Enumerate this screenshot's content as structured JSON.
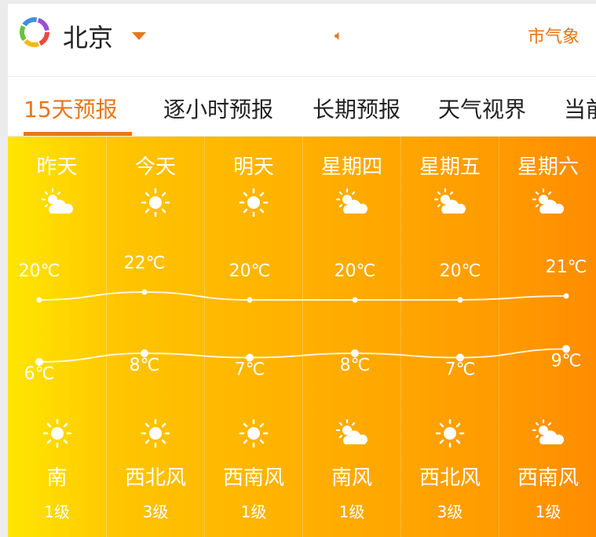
{
  "header": {
    "city": "北京",
    "agency": "市气象",
    "speaker_icon": "speaker-icon",
    "logo_colors": [
      "#e84c3d",
      "#f5b915",
      "#6cbf3f",
      "#3e8fe0",
      "#9b4fd1"
    ]
  },
  "nav": {
    "tabs": [
      {
        "label": "15天预报",
        "active": true
      },
      {
        "label": "逐小时预报"
      },
      {
        "label": "长期预报"
      },
      {
        "label": "天气视界"
      },
      {
        "label": "当前"
      }
    ]
  },
  "accent": "#e8761a",
  "days": [
    {
      "name": "昨天",
      "day_icon": "partly-cloudy",
      "night_icon": "sunny",
      "high": "20℃",
      "low": "6℃",
      "wind": "南",
      "level": "1级"
    },
    {
      "name": "今天",
      "day_icon": "sunny",
      "night_icon": "sunny",
      "high": "22℃",
      "low": "8℃",
      "wind": "西北风",
      "level": "3级"
    },
    {
      "name": "明天",
      "day_icon": "sunny",
      "night_icon": "sunny",
      "high": "20℃",
      "low": "7℃",
      "wind": "西南风",
      "level": "1级"
    },
    {
      "name": "星期四",
      "day_icon": "partly-cloudy",
      "night_icon": "partly-cloudy",
      "high": "20℃",
      "low": "8℃",
      "wind": "南风",
      "level": "1级"
    },
    {
      "name": "星期五",
      "day_icon": "partly-cloudy",
      "night_icon": "sunny",
      "high": "20℃",
      "low": "7℃",
      "wind": "西北风",
      "level": "3级"
    },
    {
      "name": "星期六",
      "day_icon": "partly-cloudy",
      "night_icon": "partly-cloudy",
      "high": "21℃",
      "low": "9℃",
      "wind": "西南风",
      "level": "1级"
    }
  ],
  "chart_data": {
    "type": "line",
    "categories": [
      "昨天",
      "今天",
      "明天",
      "星期四",
      "星期五",
      "星期六"
    ],
    "series": [
      {
        "values": [
          20,
          22,
          20,
          20,
          20,
          21
        ]
      },
      {
        "values": [
          6,
          8,
          7,
          8,
          7,
          9
        ]
      }
    ]
  }
}
